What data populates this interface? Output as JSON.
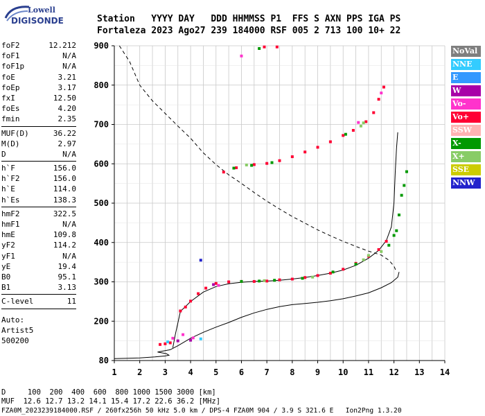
{
  "header": {
    "logo_top": "Lowell",
    "logo_bottom": "DIGISONDE",
    "labels_row": "Station   YYYY DAY   DDD HHMMSS P1  FFS S AXN PPS IGA PS",
    "values_row": "Fortaleza 2023 Ago27 239 184000 RSF 005 2 713 100 10+ 22"
  },
  "params": {
    "groups": [
      [
        [
          "foF2",
          "12.212"
        ],
        [
          "foF1",
          "N/A"
        ],
        [
          "foF1p",
          "N/A"
        ],
        [
          "foE",
          "3.21"
        ],
        [
          "foEp",
          "3.17"
        ],
        [
          "fxI",
          "12.50"
        ],
        [
          "foEs",
          "4.20"
        ],
        [
          "fmin",
          "2.35"
        ]
      ],
      [
        [
          "MUF(D)",
          "36.22"
        ],
        [
          "M(D)",
          "2.97"
        ],
        [
          "D",
          "N/A"
        ]
      ],
      [
        [
          "h`F",
          "156.0"
        ],
        [
          "h`F2",
          "156.0"
        ],
        [
          "h`E",
          "114.0"
        ],
        [
          "h`Es",
          "138.3"
        ]
      ],
      [
        [
          "hmF2",
          "322.5"
        ],
        [
          "hmF1",
          "N/A"
        ],
        [
          "hmE",
          "109.8"
        ],
        [
          "yF2",
          "114.2"
        ],
        [
          "yF1",
          "N/A"
        ],
        [
          "yE",
          "19.4"
        ],
        [
          "B0",
          "95.1"
        ],
        [
          "B1",
          "3.13"
        ]
      ],
      [
        [
          "C-level",
          "11"
        ]
      ]
    ],
    "auto_lines": [
      "Auto:",
      "Artist5",
      "500200"
    ]
  },
  "legend": [
    {
      "label": "NoVal",
      "color": "#7f7f7f"
    },
    {
      "label": "NNE",
      "color": "#33ccff"
    },
    {
      "label": "E",
      "color": "#3399ff"
    },
    {
      "label": "W",
      "color": "#a800a8"
    },
    {
      "label": "Vo-",
      "color": "#ff33cc"
    },
    {
      "label": "Vo+",
      "color": "#ff0033"
    },
    {
      "label": "SSW",
      "color": "#ffb3b3"
    },
    {
      "label": "X-",
      "color": "#009900"
    },
    {
      "label": "X+",
      "color": "#88cc66"
    },
    {
      "label": "SSE",
      "color": "#cccc00"
    },
    {
      "label": "NNW",
      "color": "#2222cc"
    }
  ],
  "footer": {
    "line1": "D     100  200  400  600  800 1000 1500 3000 [km]",
    "line2": "MUF  12.6 12.7 13.2 14.1 15.4 17.2 22.6 36.2 [MHz]",
    "line3": "FZA0M_2023239184000.RSF / 260fx256h 50 kHz 5.0 km / DPS-4 FZA0M 904 / 3.9 S 321.6 E   Ion2Png 1.3.20"
  },
  "chart_data": {
    "type": "scatter",
    "xlabel": "",
    "ylabel": "",
    "xlim": [
      1,
      14
    ],
    "ylim": [
      80,
      900
    ],
    "x_ticks": [
      1,
      2,
      3,
      4,
      5,
      6,
      7,
      8,
      9,
      10,
      11,
      12,
      13,
      14
    ],
    "y_ticks": [
      80,
      200,
      300,
      400,
      500,
      600,
      700,
      800,
      900
    ],
    "grid": true,
    "series": [
      {
        "kind": "points",
        "legend": "Vo+",
        "values": [
          [
            2.8,
            129
          ],
          [
            3.0,
            131
          ],
          [
            3.2,
            134
          ],
          [
            3.6,
            226
          ],
          [
            3.8,
            236
          ],
          [
            4.0,
            251
          ],
          [
            4.3,
            270
          ],
          [
            4.6,
            284
          ],
          [
            5.0,
            296
          ],
          [
            5.5,
            300
          ],
          [
            6.0,
            301
          ],
          [
            6.5,
            301
          ],
          [
            7.0,
            302
          ],
          [
            7.5,
            305
          ],
          [
            8.0,
            307
          ],
          [
            8.5,
            311
          ],
          [
            9.0,
            316
          ],
          [
            9.5,
            322
          ],
          [
            10.0,
            332
          ],
          [
            10.5,
            347
          ],
          [
            11.0,
            365
          ],
          [
            11.4,
            382
          ],
          [
            11.7,
            403
          ],
          [
            5.3,
            579
          ],
          [
            5.8,
            590
          ],
          [
            6.5,
            598
          ],
          [
            7.0,
            601
          ],
          [
            7.5,
            608
          ],
          [
            8.0,
            618
          ],
          [
            8.5,
            630
          ],
          [
            9.0,
            642
          ],
          [
            9.5,
            656
          ],
          [
            10.0,
            672
          ],
          [
            10.4,
            685
          ],
          [
            10.9,
            707
          ],
          [
            11.2,
            730
          ],
          [
            11.4,
            764
          ],
          [
            11.6,
            795
          ],
          [
            6.9,
            897
          ],
          [
            7.4,
            897
          ]
        ]
      },
      {
        "kind": "points",
        "legend": "X-",
        "values": [
          [
            6.0,
            301
          ],
          [
            6.7,
            302
          ],
          [
            7.3,
            304
          ],
          [
            8.4,
            309
          ],
          [
            9.6,
            325
          ],
          [
            10.5,
            345
          ],
          [
            11.8,
            393
          ],
          [
            12.0,
            418
          ],
          [
            12.1,
            430
          ],
          [
            12.2,
            470
          ],
          [
            12.3,
            520
          ],
          [
            12.4,
            545
          ],
          [
            12.5,
            580
          ],
          [
            6.4,
            596
          ],
          [
            7.2,
            603
          ],
          [
            10.1,
            675
          ],
          [
            5.7,
            589
          ],
          [
            6.7,
            893
          ]
        ]
      },
      {
        "kind": "points",
        "legend": "X+",
        "values": [
          [
            6.9,
            303
          ],
          [
            8.8,
            312
          ],
          [
            10.8,
            356
          ],
          [
            11.5,
            377
          ],
          [
            11.0,
            367
          ],
          [
            6.2,
            597
          ],
          [
            10.8,
            704
          ],
          [
            10.7,
            696
          ]
        ]
      },
      {
        "kind": "points",
        "legend": "Vo-",
        "values": [
          [
            3.3,
            148
          ],
          [
            3.7,
            159
          ],
          [
            4.1,
            149
          ],
          [
            5.1,
            291
          ],
          [
            10.6,
            705
          ],
          [
            11.5,
            780
          ],
          [
            6.0,
            874
          ]
        ]
      },
      {
        "kind": "points",
        "legend": "W",
        "values": [
          [
            3.5,
            140
          ],
          [
            4.0,
            142
          ],
          [
            4.9,
            293
          ]
        ]
      },
      {
        "kind": "points",
        "legend": "NNE",
        "values": [
          [
            3.1,
            137
          ],
          [
            4.4,
            146
          ]
        ]
      },
      {
        "kind": "points",
        "legend": "NNW",
        "values": [
          [
            4.4,
            355
          ]
        ]
      },
      {
        "kind": "line",
        "style": "solid",
        "name": "",
        "values": [
          [
            1.0,
            86
          ],
          [
            2.0,
            88
          ],
          [
            2.6,
            91
          ],
          [
            3.0,
            94
          ],
          [
            3.15,
            96
          ],
          [
            3.05,
            101
          ],
          [
            2.7,
            106
          ],
          [
            3.2,
            113
          ],
          [
            3.5,
            125
          ],
          [
            4.0,
            148
          ],
          [
            4.5,
            166
          ],
          [
            5.0,
            182
          ],
          [
            5.5,
            196
          ],
          [
            6.0,
            210
          ],
          [
            6.5,
            221
          ],
          [
            7.0,
            230
          ],
          [
            7.5,
            237
          ],
          [
            8.0,
            242
          ],
          [
            8.5,
            245
          ],
          [
            9.0,
            248
          ],
          [
            9.5,
            252
          ],
          [
            10.0,
            257
          ],
          [
            10.5,
            264
          ],
          [
            11.0,
            272
          ],
          [
            11.5,
            285
          ],
          [
            11.9,
            298
          ],
          [
            12.15,
            312
          ],
          [
            12.2,
            325
          ]
        ]
      },
      {
        "kind": "line",
        "style": "solid",
        "name": "",
        "values": [
          [
            3.3,
            119
          ],
          [
            3.4,
            160
          ],
          [
            3.6,
            225
          ],
          [
            4.0,
            250
          ],
          [
            4.5,
            274
          ],
          [
            5.0,
            288
          ],
          [
            5.5,
            295
          ],
          [
            6.0,
            299
          ],
          [
            6.5,
            301
          ],
          [
            7.0,
            302
          ],
          [
            7.5,
            304
          ],
          [
            8.0,
            307
          ],
          [
            8.5,
            311
          ],
          [
            9.0,
            316
          ],
          [
            9.5,
            322
          ],
          [
            10.0,
            330
          ],
          [
            10.5,
            342
          ],
          [
            11.0,
            360
          ],
          [
            11.4,
            380
          ],
          [
            11.7,
            405
          ],
          [
            11.9,
            440
          ],
          [
            12.0,
            500
          ],
          [
            12.05,
            580
          ],
          [
            12.1,
            640
          ],
          [
            12.15,
            680
          ]
        ]
      },
      {
        "kind": "line",
        "style": "dashed",
        "name": "",
        "values": [
          [
            1.2,
            900
          ],
          [
            1.6,
            860
          ],
          [
            2.0,
            800
          ],
          [
            2.5,
            760
          ],
          [
            3.0,
            728
          ],
          [
            3.5,
            696
          ],
          [
            4.0,
            665
          ],
          [
            4.5,
            628
          ],
          [
            5.0,
            598
          ],
          [
            5.5,
            572
          ],
          [
            6.0,
            550
          ],
          [
            6.5,
            527
          ],
          [
            7.0,
            505
          ],
          [
            7.5,
            485
          ],
          [
            8.0,
            466
          ],
          [
            8.5,
            449
          ],
          [
            9.0,
            432
          ],
          [
            9.5,
            417
          ],
          [
            10.0,
            403
          ],
          [
            10.5,
            390
          ],
          [
            11.0,
            378
          ],
          [
            11.5,
            368
          ],
          [
            11.8,
            355
          ],
          [
            12.0,
            340
          ],
          [
            12.1,
            325
          ]
        ]
      }
    ]
  }
}
